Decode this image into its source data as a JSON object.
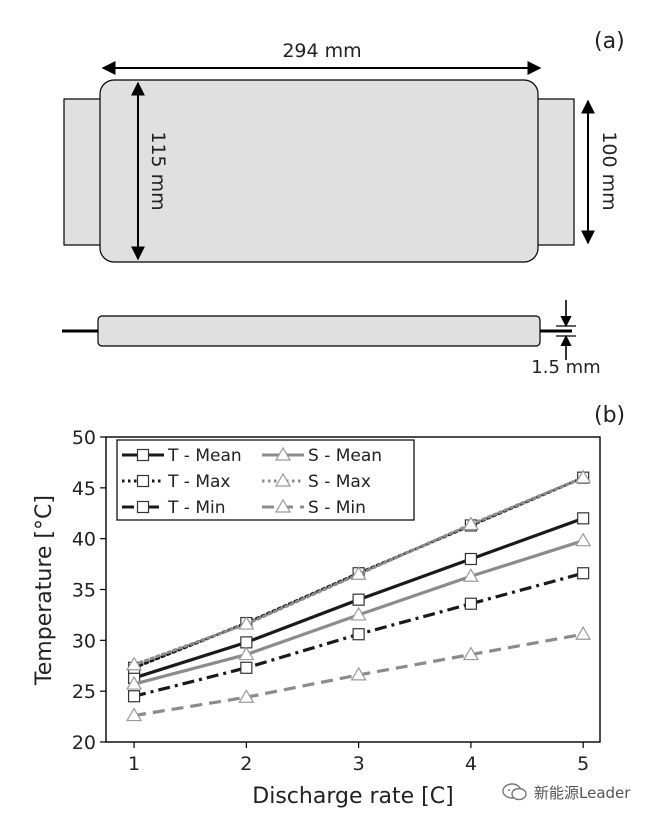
{
  "diagram": {
    "panel_a_label": "(a)",
    "panel_b_label": "(b)",
    "dim_width": "294 mm",
    "dim_height": "115 mm",
    "dim_tab": "100 mm",
    "dim_thickness": "1.5 mm",
    "cell_fill": "#e0e0e0",
    "stroke_color": "#000000"
  },
  "chart_data": {
    "type": "line",
    "xlabel": "Discharge rate [C]",
    "ylabel": "Temperature [°C]",
    "x": [
      1,
      2,
      3,
      4,
      5
    ],
    "xlim": [
      0.75,
      5.15
    ],
    "ylim": [
      20,
      50
    ],
    "xticks": [
      "1",
      "2",
      "3",
      "4",
      "5"
    ],
    "yticks": [
      "20",
      "25",
      "30",
      "35",
      "40",
      "45",
      "50"
    ],
    "grid": false,
    "legend_position": "top-left",
    "series": [
      {
        "name": "T - Mean",
        "values": [
          26.3,
          29.8,
          34.0,
          38.0,
          42.0
        ],
        "color": "#1a1a1a",
        "dash": "solid",
        "marker": "square"
      },
      {
        "name": "S - Mean",
        "values": [
          25.7,
          28.6,
          32.5,
          36.3,
          39.8
        ],
        "color": "#8c8c8c",
        "dash": "solid",
        "marker": "triangle"
      },
      {
        "name": "T - Max",
        "values": [
          27.3,
          31.7,
          36.6,
          41.3,
          46.0
        ],
        "color": "#1a1a1a",
        "dash": "dotted",
        "marker": "square"
      },
      {
        "name": "S - Max",
        "values": [
          27.6,
          31.6,
          36.5,
          41.4,
          46.0
        ],
        "color": "#8c8c8c",
        "dash": "dotted",
        "marker": "triangle"
      },
      {
        "name": "T - Min",
        "values": [
          24.5,
          27.3,
          30.6,
          33.6,
          36.6
        ],
        "color": "#1a1a1a",
        "dash": "dashdot",
        "marker": "square"
      },
      {
        "name": "S - Min",
        "values": [
          22.6,
          24.4,
          26.6,
          28.6,
          30.6
        ],
        "color": "#8c8c8c",
        "dash": "dashed",
        "marker": "triangle"
      }
    ]
  },
  "watermark": {
    "text": "新能源Leader",
    "icon": "wechat-bubble-icon"
  }
}
